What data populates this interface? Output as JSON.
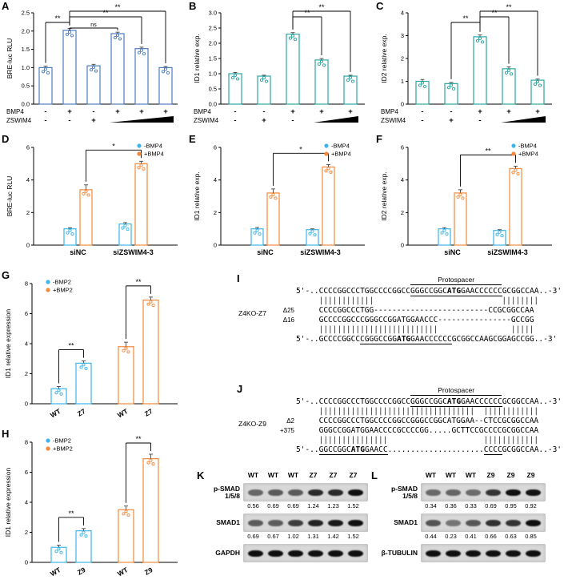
{
  "colors": {
    "panel_blue": "#4c7dbf",
    "teal": "#2aa7a2",
    "blue": "#3db5e8",
    "orange": "#f5883a"
  },
  "chart_data": [
    {
      "panel": "A",
      "type": "bar",
      "ylabel": "BRE-luc RLU",
      "ylim": [
        0,
        2.5
      ],
      "yticks": [
        "0.0",
        "0.5",
        "1.0",
        "1.5",
        "2.0",
        "2.5"
      ],
      "color": "panel_blue",
      "values": [
        1.0,
        2.02,
        1.05,
        1.93,
        1.52,
        1.0
      ],
      "errors": [
        0.04,
        0.05,
        0.04,
        0.04,
        0.04,
        0.03
      ],
      "condition_rows": [
        {
          "name": "BMP4",
          "marks": [
            "-",
            "+",
            "-",
            "+",
            "+",
            "+"
          ]
        },
        {
          "name": "ZSWIM4",
          "marks": [
            "-",
            "-",
            "+"
          ],
          "wedge_from": 3
        }
      ],
      "brackets": [
        {
          "from": 1,
          "to": 5,
          "label": "**",
          "level": 0
        },
        {
          "from": 1,
          "to": 4,
          "label": "**",
          "level": 1
        },
        {
          "from": 0,
          "to": 1,
          "label": "**",
          "level": 2
        },
        {
          "from": 1,
          "to": 3,
          "label": "ns",
          "level": 3
        }
      ]
    },
    {
      "panel": "B",
      "type": "bar",
      "ylabel": "ID1 relative exp.",
      "ylim": [
        0,
        3
      ],
      "yticks": [
        "0.0",
        "0.5",
        "1.0",
        "1.5",
        "2.0",
        "2.5",
        "3.0"
      ],
      "color": "teal",
      "values": [
        1.0,
        0.92,
        2.3,
        1.45,
        0.92
      ],
      "errors": [
        0.04,
        0.03,
        0.05,
        0.05,
        0.03
      ],
      "condition_rows": [
        {
          "name": "BMP4",
          "marks": [
            "-",
            "-",
            "+",
            "+",
            "+"
          ]
        },
        {
          "name": "ZSWIM4",
          "marks": [
            "-",
            "+",
            "-"
          ],
          "wedge_from": 3
        }
      ],
      "brackets": [
        {
          "from": 2,
          "to": 4,
          "label": "**",
          "level": 0
        },
        {
          "from": 2,
          "to": 3,
          "label": "**",
          "level": 1
        }
      ]
    },
    {
      "panel": "C",
      "type": "bar",
      "ylabel": "ID2 relative exp.",
      "ylim": [
        0,
        4
      ],
      "yticks": [
        "0",
        "1",
        "2",
        "3",
        "4"
      ],
      "color": "teal",
      "values": [
        1.0,
        0.9,
        2.95,
        1.55,
        1.05
      ],
      "errors": [
        0.08,
        0.05,
        0.08,
        0.08,
        0.05
      ],
      "condition_rows": [
        {
          "name": "BMP4",
          "marks": [
            "-",
            "-",
            "+",
            "+",
            "+"
          ]
        },
        {
          "name": "ZSWIM4",
          "marks": [
            "-",
            "+",
            "-"
          ],
          "wedge_from": 3
        }
      ],
      "brackets": [
        {
          "from": 2,
          "to": 4,
          "label": "**",
          "level": 0
        },
        {
          "from": 2,
          "to": 3,
          "label": "**",
          "level": 1
        },
        {
          "from": 1,
          "to": 2,
          "label": "**",
          "level": 2
        }
      ]
    },
    {
      "panel": "D",
      "type": "grouped",
      "ylabel": "BRE-luc RLU",
      "ylim": [
        0,
        6
      ],
      "yticks": [
        "0",
        "2",
        "4",
        "6"
      ],
      "categories": [
        "siNC",
        "siZSWIM4-3"
      ],
      "series": [
        {
          "name": "-BMP4",
          "color": "blue",
          "values": [
            1.0,
            1.3
          ],
          "errors": [
            0.06,
            0.08
          ]
        },
        {
          "name": "+BMP4",
          "color": "orange",
          "values": [
            3.4,
            5.0
          ],
          "errors": [
            0.3,
            0.15
          ]
        }
      ],
      "legend": [
        {
          "name": "-BMP4",
          "color": "blue"
        },
        {
          "name": "+BMP4",
          "color": "orange"
        }
      ],
      "legend_pos": "right",
      "brackets": [
        {
          "from": 1,
          "to": 3,
          "label": "*"
        }
      ]
    },
    {
      "panel": "E",
      "type": "grouped",
      "ylabel": "ID1 relative exp.",
      "ylim": [
        0,
        6
      ],
      "yticks": [
        "0",
        "2",
        "4",
        "6"
      ],
      "categories": [
        "siNC",
        "siZSWIM4-3"
      ],
      "series": [
        {
          "name": "-BMP4",
          "color": "blue",
          "values": [
            1.0,
            0.95
          ],
          "errors": [
            0.08,
            0.05
          ]
        },
        {
          "name": "+BMP4",
          "color": "orange",
          "values": [
            3.2,
            4.8
          ],
          "errors": [
            0.25,
            0.15
          ]
        }
      ],
      "legend": [
        {
          "name": "-BMP4",
          "color": "blue"
        },
        {
          "name": "+BMP4",
          "color": "orange"
        }
      ],
      "legend_pos": "right",
      "brackets": [
        {
          "from": 1,
          "to": 3,
          "label": "*"
        }
      ]
    },
    {
      "panel": "F",
      "type": "grouped",
      "ylabel": "ID2 relative exp.",
      "ylim": [
        0,
        6
      ],
      "yticks": [
        "0",
        "2",
        "4",
        "6"
      ],
      "categories": [
        "siNC",
        "siZSWIM4-3"
      ],
      "series": [
        {
          "name": "-BMP4",
          "color": "blue",
          "values": [
            1.0,
            0.9
          ],
          "errors": [
            0.07,
            0.05
          ]
        },
        {
          "name": "+BMP4",
          "color": "orange",
          "values": [
            3.2,
            4.7
          ],
          "errors": [
            0.2,
            0.15
          ]
        }
      ],
      "legend": [
        {
          "name": "-BMP4",
          "color": "blue"
        },
        {
          "name": "+BMP4",
          "color": "orange"
        }
      ],
      "legend_pos": "right",
      "brackets": [
        {
          "from": 1,
          "to": 3,
          "label": "**"
        }
      ]
    },
    {
      "panel": "G",
      "type": "bar",
      "ylabel": "ID1 relative expression",
      "ylim": [
        0,
        8
      ],
      "yticks": [
        "0",
        "2",
        "4",
        "6",
        "8"
      ],
      "bar_colors": [
        "blue",
        "blue",
        "orange",
        "orange"
      ],
      "values": [
        1.0,
        2.7,
        3.8,
        6.9
      ],
      "errors": [
        0.15,
        0.15,
        0.3,
        0.2
      ],
      "xlabels": [
        "WT",
        "Z7",
        "WT",
        "Z7"
      ],
      "gap_after": 1,
      "legend": [
        {
          "name": "-BMP2",
          "color": "blue"
        },
        {
          "name": "+BMP2",
          "color": "orange"
        }
      ],
      "legend_pos": "left",
      "brackets": [
        {
          "from": 0,
          "to": 1,
          "label": "**"
        },
        {
          "from": 2,
          "to": 3,
          "label": "**"
        }
      ]
    },
    {
      "panel": "H",
      "type": "bar",
      "ylabel": "ID1 relative expression",
      "ylim": [
        0,
        8
      ],
      "yticks": [
        "0",
        "2",
        "4",
        "6",
        "8"
      ],
      "bar_colors": [
        "blue",
        "blue",
        "orange",
        "orange"
      ],
      "values": [
        1.0,
        2.1,
        3.5,
        6.9
      ],
      "errors": [
        0.15,
        0.15,
        0.25,
        0.3
      ],
      "xlabels": [
        "WT",
        "Z9",
        "WT",
        "Z9"
      ],
      "gap_after": 1,
      "legend": [
        {
          "name": "-BMP2",
          "color": "blue"
        },
        {
          "name": "+BMP2",
          "color": "orange"
        }
      ],
      "legend_pos": "left",
      "brackets": [
        {
          "from": 0,
          "to": 1,
          "label": "**"
        },
        {
          "from": 2,
          "to": 3,
          "label": "**"
        }
      ]
    }
  ],
  "sequences": {
    "I": {
      "label": "I",
      "proto_label": "Protospacer",
      "proto_range": [
        25,
        45
      ],
      "group_label": "Z4KO-Z7",
      "rows": [
        {
          "cls": "strand",
          "text": "5'-..CCCCGGCCCTGGCCCCGGCCGGGCCGGCATGGAACCCCCCGCGGCCAA..-3'",
          "u": [
            [
              25,
              45
            ]
          ],
          "atg": true
        },
        {
          "cls": "pipes",
          "text": "     ||||||||||||                            ||||||||"
        },
        {
          "lab": "Δ25",
          "text": "     CCCCGGCCCTGG-------------------------CCGCGGCCAA"
        },
        {
          "lab": "Δ16",
          "text": "     GCCCCGGCCCGGGCCGGATGGAACCC----------------GCCGG"
        },
        {
          "cls": "pipes",
          "text": "     ||||||||||||||||||||||||||                |||||"
        },
        {
          "cls": "strand",
          "text": "5'-..GCCCCGGCCCGGGCCGGATGGAACCCCCCGCGGCCAAGCGGAGCCGG..-3'",
          "u": [
            [
              14,
              34
            ]
          ],
          "atg": true
        }
      ]
    },
    "J": {
      "label": "J",
      "proto_label": "Protospacer",
      "proto_range": [
        25,
        45
      ],
      "group_label": "Z4KO-Z9",
      "rows": [
        {
          "cls": "strand",
          "text": "5'-..CCCCGGCCCTGGCCCCGGCCGGGCCGGCATGGAACCCCCCGCGGCCAA..-3'",
          "u": [
            [
              25,
              45
            ]
          ],
          "atg": true
        },
        {
          "cls": "pipes",
          "text": "     ||||||||||||||||||||||||||||||||||  ||||||||||||"
        },
        {
          "lab": "Δ2",
          "text": "     CCCCGGCCCTGGCCCCGGCCGGGCCGGCATGGAA--CTCCGCGGCCAA"
        },
        {
          "lab": "+375",
          "text": "     GGGCCGGATGGAACCCCGCCCCGG.....GCTTCCGCCCCGCGGCCAA"
        },
        {
          "cls": "pipes",
          "text": "     |||||||||||||||                     ||||||||||||"
        },
        {
          "cls": "strand",
          "text": "5'-..GGCCGGCATGGAACC.....................CCCCGCGGCCAA..-3'",
          "u": [
            [
              5,
              20
            ],
            [
              41,
              45
            ]
          ],
          "atg": true
        }
      ]
    }
  },
  "blots": {
    "K": {
      "label": "K",
      "lanes": [
        "WT",
        "WT",
        "WT",
        "Z7",
        "Z7",
        "Z7"
      ],
      "rows": [
        {
          "name_lines": [
            "p-SMAD",
            "1/5/8"
          ],
          "bands": [
            0.56,
            0.69,
            0.69,
            1.24,
            1.23,
            1.52
          ],
          "numbers": [
            "0.56",
            "0.69",
            "0.69",
            "1.24",
            "1.23",
            "1.52"
          ]
        },
        {
          "name_lines": [
            "SMAD1"
          ],
          "bands": [
            0.69,
            0.67,
            1.02,
            1.31,
            1.42,
            1.52
          ],
          "numbers": [
            "0.69",
            "0.67",
            "1.02",
            "1.31",
            "1.42",
            "1.52"
          ]
        },
        {
          "name_lines": [
            "GAPDH"
          ],
          "bands": [
            1,
            1,
            1,
            1,
            1,
            1
          ]
        }
      ]
    },
    "L": {
      "label": "L",
      "lanes": [
        "WT",
        "WT",
        "WT",
        "Z9",
        "Z9",
        "Z9"
      ],
      "rows": [
        {
          "name_lines": [
            "p-SMAD",
            "1/5/8"
          ],
          "bands": [
            0.34,
            0.36,
            0.33,
            0.69,
            0.95,
            0.92
          ],
          "numbers": [
            "0.34",
            "0.36",
            "0.33",
            "0.69",
            "0.95",
            "0.92"
          ]
        },
        {
          "name_lines": [
            "SMAD1"
          ],
          "bands": [
            0.44,
            0.23,
            0.41,
            0.66,
            0.63,
            0.85
          ],
          "numbers": [
            "0.44",
            "0.23",
            "0.41",
            "0.66",
            "0.63",
            "0.85"
          ]
        },
        {
          "name_lines": [
            "β-TUBULIN"
          ],
          "bands": [
            1,
            1,
            1,
            1,
            1,
            1
          ]
        }
      ]
    }
  }
}
